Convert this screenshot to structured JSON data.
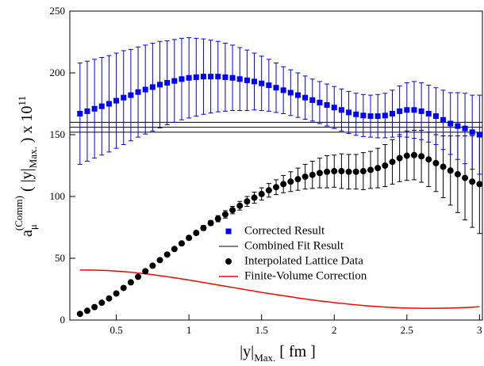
{
  "chart_data": {
    "type": "scatter",
    "x": [
      0.25,
      0.3,
      0.35,
      0.4,
      0.45,
      0.5,
      0.55,
      0.6,
      0.65,
      0.7,
      0.75,
      0.8,
      0.85,
      0.9,
      0.95,
      1.0,
      1.05,
      1.1,
      1.15,
      1.2,
      1.25,
      1.3,
      1.35,
      1.4,
      1.45,
      1.5,
      1.55,
      1.6,
      1.65,
      1.7,
      1.75,
      1.8,
      1.85,
      1.9,
      1.95,
      2.0,
      2.05,
      2.1,
      2.15,
      2.2,
      2.25,
      2.3,
      2.35,
      2.4,
      2.45,
      2.5,
      2.55,
      2.6,
      2.65,
      2.7,
      2.75,
      2.8,
      2.85,
      2.9,
      2.95,
      3.0
    ],
    "series": [
      {
        "name": "Corrected Result",
        "color": "#0000ff",
        "marker": "square",
        "values": [
          167,
          169,
          171,
          173,
          175,
          177.5,
          180,
          182,
          184.5,
          186.5,
          188.5,
          190.5,
          192,
          193.5,
          195,
          196,
          196.5,
          197,
          197,
          197,
          196.5,
          196,
          195,
          194,
          193,
          191.5,
          190,
          188,
          186,
          184,
          182,
          180,
          178,
          176,
          174,
          172,
          170,
          168,
          166.5,
          165.5,
          165,
          165,
          165.5,
          167,
          169,
          170,
          170,
          169,
          167,
          165,
          162,
          159,
          157,
          155,
          152,
          150
        ],
        "errors": [
          41,
          40.5,
          40,
          39.5,
          39,
          38.5,
          38,
          37,
          36.5,
          36,
          35.5,
          35,
          34,
          33.5,
          33,
          32.5,
          31.5,
          30.5,
          29.5,
          28.5,
          27.5,
          26.5,
          25.5,
          24.5,
          23,
          22,
          21,
          20,
          19,
          18.5,
          18,
          17.5,
          17,
          17,
          17,
          17,
          17,
          17,
          17,
          17,
          17,
          17.5,
          18,
          19,
          20.5,
          22,
          23,
          23,
          23,
          23,
          24,
          25,
          27,
          28.5,
          30,
          32
        ]
      },
      {
        "name": "Combined Fit Result",
        "color": "#000000",
        "marker": "band",
        "value": 156,
        "error": 4
      },
      {
        "name": "Interpolated Lattice Data",
        "color": "#000000",
        "marker": "circle",
        "values": [
          5,
          7.5,
          10.5,
          14,
          17.5,
          21.5,
          26,
          30.5,
          35,
          39.5,
          44,
          48.5,
          53,
          57.5,
          62,
          66.5,
          70.5,
          74.5,
          78.5,
          82,
          85.5,
          89,
          92.5,
          96,
          99,
          102,
          105,
          107.5,
          110,
          112,
          114,
          116,
          117.5,
          119,
          120,
          120.5,
          120.5,
          120,
          120,
          120.5,
          121.5,
          123,
          125,
          128,
          131,
          133,
          133.5,
          132.5,
          130,
          127,
          124,
          121,
          118,
          115,
          112,
          110
        ],
        "errors": [
          0.5,
          0.5,
          0.5,
          0.5,
          0.5,
          0.5,
          0.5,
          0.5,
          0.5,
          0.5,
          0.5,
          1,
          1,
          1,
          1.5,
          1.5,
          1.5,
          2,
          2,
          2.5,
          3,
          3,
          3.5,
          4,
          4.5,
          5,
          5.5,
          6,
          7,
          8,
          9,
          10,
          11,
          12,
          13,
          13,
          14,
          14,
          14,
          15,
          15,
          16,
          17,
          18,
          19,
          20,
          20,
          21,
          22,
          23,
          25,
          28,
          31,
          34,
          37,
          40
        ]
      },
      {
        "name": "Finite-Volume Correction",
        "color": "#ff0000",
        "marker": "line",
        "values": [
          40.5,
          40.5,
          40.4,
          40.2,
          40,
          39.6,
          39.2,
          38.7,
          38.1,
          37.4,
          36.7,
          35.9,
          35.1,
          34.2,
          33.3,
          32.4,
          31.4,
          30.4,
          29.4,
          28.4,
          27.4,
          26.4,
          25.4,
          24.4,
          23.4,
          22.4,
          21.5,
          20.6,
          19.7,
          18.8,
          17.9,
          17.1,
          16.3,
          15.5,
          14.8,
          14.1,
          13.5,
          12.9,
          12.3,
          11.8,
          11.3,
          10.9,
          10.5,
          10.2,
          9.9,
          9.7,
          9.6,
          9.5,
          9.5,
          9.5,
          9.6,
          9.7,
          9.9,
          10.1,
          10.4,
          10.7
        ]
      }
    ],
    "xlabel_parts": [
      "|y|",
      "Max.",
      " [ fm ]"
    ],
    "ylabel_parts": [
      "a",
      "μ",
      "(Comm)",
      " ( |y|",
      "Max.",
      " ) x 10",
      "11"
    ],
    "xlim": [
      0.18,
      3.02
    ],
    "ylim": [
      0,
      250
    ],
    "xticks": [
      0.5,
      1,
      1.5,
      2,
      2.5,
      3
    ],
    "yticks": [
      0,
      50,
      100,
      150,
      200,
      250
    ]
  }
}
